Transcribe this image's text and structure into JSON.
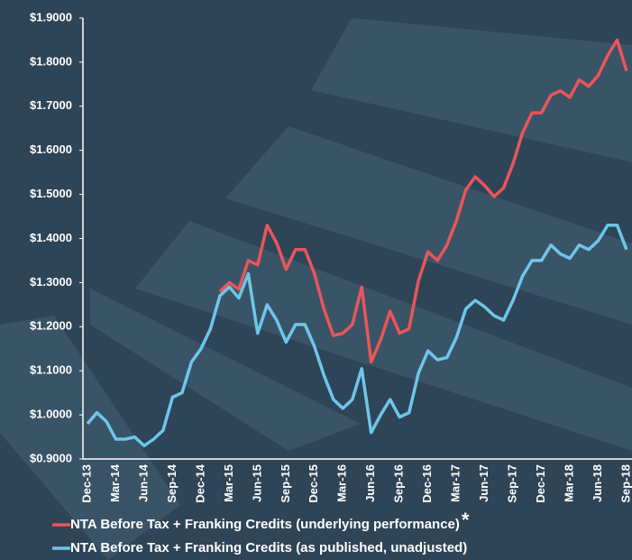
{
  "chart_data": {
    "type": "line",
    "categories": [
      "Dec-13",
      null,
      null,
      "Mar-14",
      null,
      null,
      "Jun-14",
      null,
      null,
      "Sep-14",
      null,
      null,
      "Dec-14",
      null,
      null,
      "Mar-15",
      null,
      null,
      "Jun-15",
      null,
      null,
      "Sep-15",
      null,
      null,
      "Dec-15",
      null,
      null,
      "Mar-16",
      null,
      null,
      "Jun-16",
      null,
      null,
      "Sep-16",
      null,
      null,
      "Dec-16",
      null,
      null,
      "Mar-17",
      null,
      null,
      "Jun-17",
      null,
      null,
      "Sep-17",
      null,
      null,
      "Dec-17",
      null,
      null,
      "Mar-18",
      null,
      null,
      "Jun-18",
      null,
      null,
      "Sep-18"
    ],
    "series": [
      {
        "name": "NTA Before Tax + Franking Credits (underlying performance)",
        "color": "#e8565a",
        "values": [
          null,
          null,
          null,
          null,
          null,
          null,
          null,
          null,
          null,
          null,
          null,
          null,
          null,
          null,
          1.28,
          1.3,
          1.285,
          1.35,
          1.34,
          1.43,
          1.39,
          1.33,
          1.375,
          1.375,
          1.32,
          1.24,
          1.18,
          1.185,
          1.205,
          1.29,
          1.12,
          1.17,
          1.235,
          1.185,
          1.195,
          1.305,
          1.37,
          1.35,
          1.385,
          1.44,
          1.51,
          1.54,
          1.52,
          1.495,
          1.515,
          1.57,
          1.64,
          1.685,
          1.685,
          1.725,
          1.735,
          1.72,
          1.76,
          1.745,
          1.77,
          1.815,
          1.85,
          1.78
        ]
      },
      {
        "name": "NTA Before Tax + Franking Credits (as published, unadjusted)",
        "color": "#6ec6ea",
        "values": [
          0.98,
          1.005,
          0.985,
          0.945,
          0.945,
          0.95,
          0.93,
          0.945,
          0.965,
          1.04,
          1.05,
          1.12,
          1.15,
          1.195,
          1.27,
          1.29,
          1.265,
          1.32,
          1.185,
          1.25,
          1.215,
          1.165,
          1.205,
          1.205,
          1.155,
          1.09,
          1.035,
          1.015,
          1.035,
          1.105,
          0.96,
          1.0,
          1.035,
          0.995,
          1.005,
          1.095,
          1.145,
          1.125,
          1.13,
          1.175,
          1.24,
          1.26,
          1.245,
          1.225,
          1.215,
          1.26,
          1.315,
          1.35,
          1.35,
          1.385,
          1.365,
          1.355,
          1.385,
          1.375,
          1.395,
          1.43,
          1.43,
          1.375
        ]
      }
    ],
    "footnote_mark": "*",
    "ylim": [
      0.9,
      1.9
    ],
    "yticks": [
      {
        "value": 0.9,
        "label": "$0.9000"
      },
      {
        "value": 1.0,
        "label": "$1.0000"
      },
      {
        "value": 1.1,
        "label": "$1.1000"
      },
      {
        "value": 1.2,
        "label": "$1.2000"
      },
      {
        "value": 1.3,
        "label": "$1.3000"
      },
      {
        "value": 1.4,
        "label": "$1.4000"
      },
      {
        "value": 1.5,
        "label": "$1.5000"
      },
      {
        "value": 1.6,
        "label": "$1.6000"
      },
      {
        "value": 1.7,
        "label": "$1.7000"
      },
      {
        "value": 1.8,
        "label": "$1.8000"
      },
      {
        "value": 1.9,
        "label": "$1.9000"
      }
    ],
    "grid": false
  }
}
